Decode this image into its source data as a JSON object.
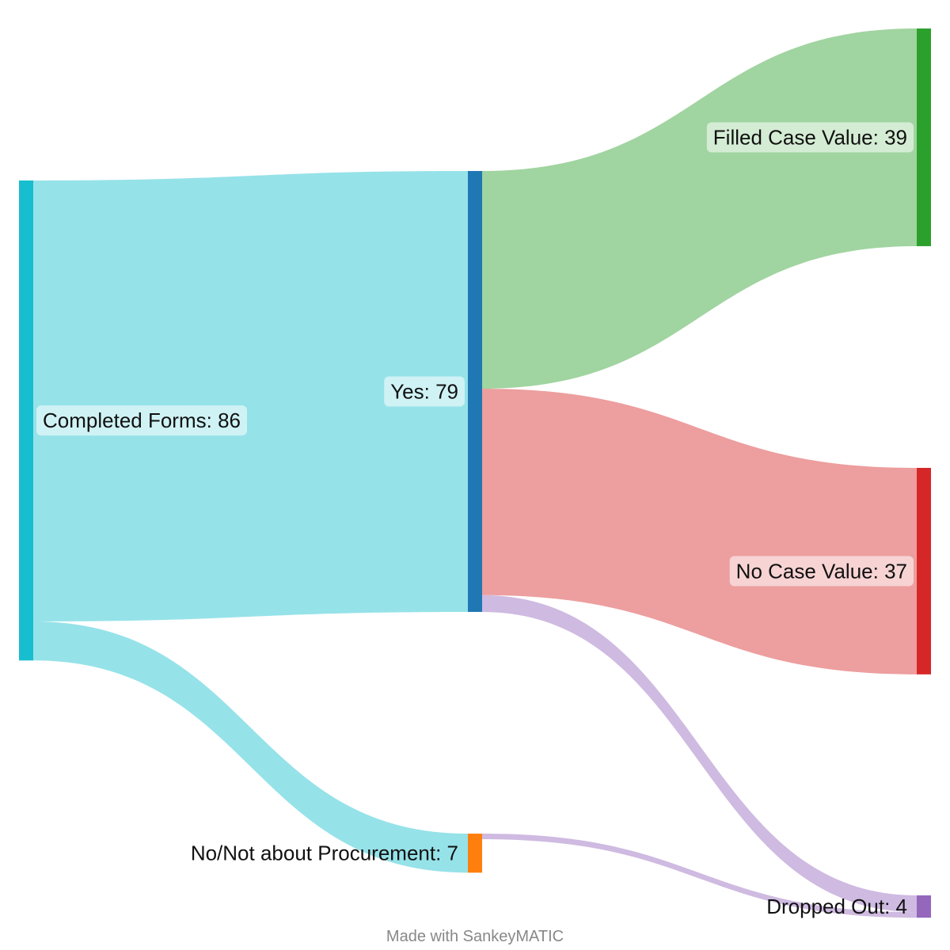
{
  "chart_data": {
    "type": "sankey",
    "nodes": [
      {
        "id": "completed",
        "name": "Completed Forms",
        "value": 86,
        "label": "Completed Forms: 86",
        "color": "#17becf",
        "column": 0
      },
      {
        "id": "yes",
        "name": "Yes",
        "value": 79,
        "label": "Yes: 79",
        "color": "#1f77b4",
        "column": 1
      },
      {
        "id": "no",
        "name": "No/Not about Procurement",
        "value": 7,
        "label": "No/Not about Procurement: 7",
        "color": "#ff7f0e",
        "column": 1
      },
      {
        "id": "filled",
        "name": "Filled Case Value",
        "value": 39,
        "label": "Filled Case Value: 39",
        "color": "#2ca02c",
        "column": 2
      },
      {
        "id": "nocase",
        "name": "No Case Value",
        "value": 37,
        "label": "No Case Value: 37",
        "color": "#d62728",
        "column": 2
      },
      {
        "id": "dropped",
        "name": "Dropped Out",
        "value": 4,
        "label": "Dropped Out: 4",
        "color": "#9467bd",
        "column": 2
      }
    ],
    "links": [
      {
        "source": "completed",
        "target": "yes",
        "value": 79,
        "color": "#17becf"
      },
      {
        "source": "completed",
        "target": "no",
        "value": 7,
        "color": "#17becf"
      },
      {
        "source": "yes",
        "target": "filled",
        "value": 39,
        "color": "#2ca02c"
      },
      {
        "source": "yes",
        "target": "nocase",
        "value": 37,
        "color": "#d62728"
      },
      {
        "source": "yes",
        "target": "dropped",
        "value": 3,
        "color": "#9467bd"
      },
      {
        "source": "no",
        "target": "dropped",
        "value": 1,
        "color": "#9467bd"
      }
    ]
  },
  "footer": {
    "credit": "Made with SankeyMATIC"
  }
}
